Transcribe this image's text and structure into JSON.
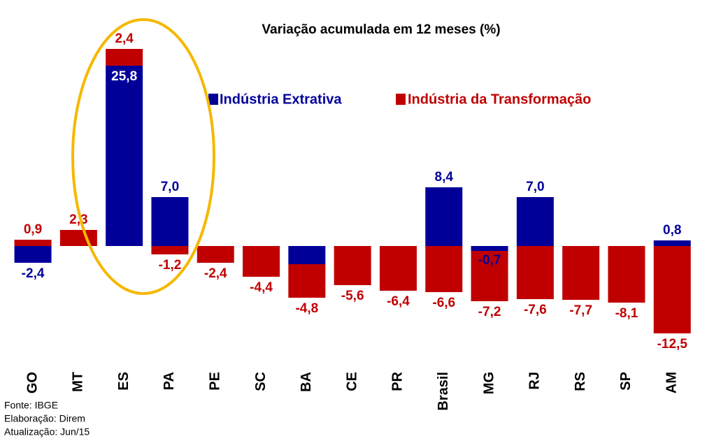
{
  "chart_data": {
    "type": "stacked-bar",
    "title": "Variação acumulada em 12 meses (%)",
    "categories": [
      "GO",
      "MT",
      "ES",
      "PA",
      "PE",
      "SC",
      "BA",
      "CE",
      "PR",
      "Brasil",
      "MG",
      "RJ",
      "RS",
      "SP",
      "AM"
    ],
    "series": [
      {
        "name": "Indústria Extrativa",
        "color": "#000099",
        "values": [
          -2.4,
          null,
          25.8,
          7.0,
          null,
          null,
          -2.6,
          null,
          null,
          8.4,
          -0.7,
          7.0,
          null,
          null,
          0.8
        ],
        "value_labels": [
          "-2,4",
          null,
          "25,8",
          "7,0",
          null,
          null,
          null,
          null,
          null,
          "8,4",
          "-0,7",
          "7,0",
          null,
          null,
          "0,8"
        ]
      },
      {
        "name": "Indústria da Transformação",
        "color": "#c00000",
        "values": [
          0.9,
          2.3,
          2.4,
          -1.2,
          -2.4,
          -4.4,
          -4.8,
          -5.6,
          -6.4,
          -6.6,
          -7.2,
          -7.6,
          -7.7,
          -8.1,
          -12.5
        ],
        "value_labels": [
          "0,9",
          "2,3",
          "2,4",
          "-1,2",
          "-2,4",
          "-4,4",
          "-4,8",
          "-5,6",
          "-6,4",
          "-6,6",
          "-7,2",
          "-7,6",
          "-7,7",
          "-8,1",
          "-12,5"
        ]
      }
    ],
    "ylim": [
      -15,
      30
    ],
    "notes": [
      "Fonte: IBGE",
      "Elaboração: Direm",
      "Atualização:  Jun/15"
    ]
  }
}
